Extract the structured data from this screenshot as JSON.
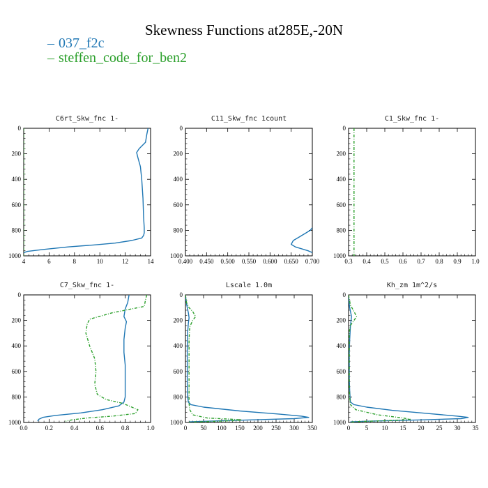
{
  "title": "Skewness Functions at285E,-20N",
  "legend": [
    {
      "name": "037_f2c",
      "color": "#1f77b4",
      "style": "solid"
    },
    {
      "name": "steffen_code_for_ben2",
      "color": "#2ca02c",
      "style": "dashdot"
    }
  ],
  "chart_data": [
    {
      "type": "line",
      "title": "C6rt_Skw_fnc   1-",
      "xlim": [
        4,
        14
      ],
      "ylim": [
        1000,
        0
      ],
      "xticks": [
        "4",
        "6",
        "8",
        "10",
        "12",
        "14"
      ],
      "yticks": [
        "0",
        "200",
        "400",
        "600",
        "800",
        "1000"
      ],
      "series": [
        {
          "name": "037_f2c",
          "x": [
            13.8,
            13.7,
            13.6,
            13.1,
            12.9,
            13.0,
            13.2,
            13.3,
            13.4,
            13.45,
            13.5,
            13.5,
            13.45,
            13.3,
            12.5,
            11.2,
            9.5,
            7.5,
            5.5,
            4.3,
            4.0
          ],
          "y": [
            0,
            50,
            110,
            160,
            190,
            230,
            300,
            400,
            550,
            700,
            780,
            820,
            840,
            860,
            880,
            900,
            915,
            930,
            950,
            965,
            975
          ]
        },
        {
          "name": "steffen_code_for_ben2",
          "x": [
            4.0,
            4.0
          ],
          "y": [
            0,
            1000
          ]
        }
      ]
    },
    {
      "type": "line",
      "title": "C11_Skw_fnc   1count",
      "xlim": [
        0.4,
        0.7
      ],
      "ylim": [
        1000,
        0
      ],
      "xticks": [
        "0.400",
        "0.450",
        "0.500",
        "0.550",
        "0.600",
        "0.650",
        "0.700"
      ],
      "yticks": [
        "0",
        "200",
        "400",
        "600",
        "800",
        "1000"
      ],
      "series": [
        {
          "name": "037_f2c",
          "x": [
            0.7,
            0.695,
            0.685,
            0.67,
            0.655,
            0.65,
            0.66,
            0.675,
            0.69,
            0.7
          ],
          "y": [
            780,
            800,
            820,
            850,
            880,
            910,
            930,
            945,
            960,
            975
          ]
        },
        {
          "name": "steffen_code_for_ben2",
          "x": [],
          "y": []
        }
      ]
    },
    {
      "type": "line",
      "title": "C1_Skw_fnc   1-",
      "xlim": [
        0.3,
        1.0
      ],
      "ylim": [
        1000,
        0
      ],
      "xticks": [
        "0.3",
        "0.4",
        "0.5",
        "0.6",
        "0.7",
        "0.8",
        "0.9",
        "1.0"
      ],
      "yticks": [
        "0",
        "200",
        "400",
        "600",
        "800",
        "1000"
      ],
      "series": [
        {
          "name": "037_f2c",
          "x": [],
          "y": []
        },
        {
          "name": "steffen_code_for_ben2",
          "x": [
            0.33,
            0.33
          ],
          "y": [
            0,
            1000
          ]
        }
      ]
    },
    {
      "type": "line",
      "title": "C7_Skw_fnc   1-",
      "xlim": [
        0.0,
        1.0
      ],
      "ylim": [
        1000,
        0
      ],
      "xticks": [
        "0.0",
        "0.2",
        "0.4",
        "0.6",
        "0.8",
        "1.0"
      ],
      "yticks": [
        "0",
        "200",
        "400",
        "600",
        "800",
        "1000"
      ],
      "series": [
        {
          "name": "037_f2c",
          "x": [
            0.83,
            0.82,
            0.8,
            0.79,
            0.81,
            0.8,
            0.79,
            0.79,
            0.8,
            0.8,
            0.8,
            0.8,
            0.79,
            0.75,
            0.62,
            0.45,
            0.25,
            0.15,
            0.12,
            0.11
          ],
          "y": [
            0,
            60,
            110,
            170,
            210,
            260,
            350,
            450,
            550,
            650,
            750,
            800,
            840,
            870,
            900,
            925,
            945,
            960,
            975,
            990
          ]
        },
        {
          "name": "steffen_code_for_ben2",
          "x": [
            0.97,
            0.96,
            0.95,
            0.7,
            0.52,
            0.5,
            0.49,
            0.52,
            0.56,
            0.57,
            0.56,
            0.58,
            0.65,
            0.78,
            0.9,
            0.88,
            0.7,
            0.5,
            0.38,
            0.33
          ],
          "y": [
            0,
            40,
            90,
            140,
            190,
            230,
            300,
            400,
            500,
            600,
            700,
            780,
            820,
            850,
            900,
            930,
            950,
            965,
            980,
            990
          ]
        }
      ]
    },
    {
      "type": "line",
      "title": "Lscale   1.0m",
      "xlim": [
        0,
        350
      ],
      "ylim": [
        1000,
        0
      ],
      "xticks": [
        "0",
        "50",
        "100",
        "150",
        "200",
        "250",
        "300",
        "350"
      ],
      "yticks": [
        "0",
        "200",
        "400",
        "600",
        "800",
        "1000"
      ],
      "series": [
        {
          "name": "037_f2c",
          "x": [
            0,
            2,
            5,
            8,
            10,
            8,
            6,
            5,
            5,
            5,
            5,
            6,
            8,
            15,
            50,
            150,
            260,
            320,
            340,
            300,
            180,
            60,
            10
          ],
          "y": [
            0,
            50,
            100,
            140,
            180,
            220,
            300,
            400,
            500,
            600,
            700,
            800,
            840,
            860,
            880,
            910,
            935,
            950,
            960,
            970,
            980,
            990,
            995
          ]
        },
        {
          "name": "steffen_code_for_ben2",
          "x": [
            0,
            3,
            10,
            20,
            28,
            20,
            12,
            10,
            10,
            10,
            10,
            10,
            10,
            12,
            20,
            60,
            130,
            155,
            140,
            90,
            40,
            10
          ],
          "y": [
            0,
            60,
            100,
            130,
            170,
            200,
            250,
            350,
            450,
            550,
            650,
            750,
            850,
            900,
            940,
            965,
            975,
            980,
            985,
            990,
            995,
            998
          ]
        }
      ]
    },
    {
      "type": "line",
      "title": "Kh_zm   1m^2/s",
      "xlim": [
        0,
        35
      ],
      "ylim": [
        1000,
        0
      ],
      "xticks": [
        "0",
        "5",
        "10",
        "15",
        "20",
        "25",
        "30",
        "35"
      ],
      "yticks": [
        "0",
        "200",
        "400",
        "600",
        "800",
        "1000"
      ],
      "series": [
        {
          "name": "037_f2c",
          "x": [
            0,
            0.1,
            0.3,
            0.6,
            0.8,
            0.7,
            0.5,
            0.3,
            0.2,
            0.2,
            0.2,
            0.3,
            0.5,
            1.5,
            5,
            12,
            22,
            30,
            33,
            31,
            20,
            5,
            0.5
          ],
          "y": [
            0,
            50,
            100,
            140,
            170,
            200,
            250,
            350,
            450,
            550,
            650,
            750,
            840,
            860,
            880,
            905,
            930,
            950,
            960,
            970,
            980,
            990,
            995
          ]
        },
        {
          "name": "steffen_code_for_ben2",
          "x": [
            0,
            0.5,
            1.5,
            2.2,
            1.5,
            0.5,
            0.2,
            0.2,
            0.2,
            0.2,
            0.2,
            0.3,
            0.5,
            2,
            8,
            15,
            17,
            14,
            8,
            3,
            0.5
          ],
          "y": [
            0,
            80,
            130,
            170,
            200,
            240,
            300,
            400,
            500,
            600,
            700,
            800,
            860,
            900,
            940,
            965,
            975,
            982,
            988,
            993,
            998
          ]
        }
      ]
    }
  ]
}
